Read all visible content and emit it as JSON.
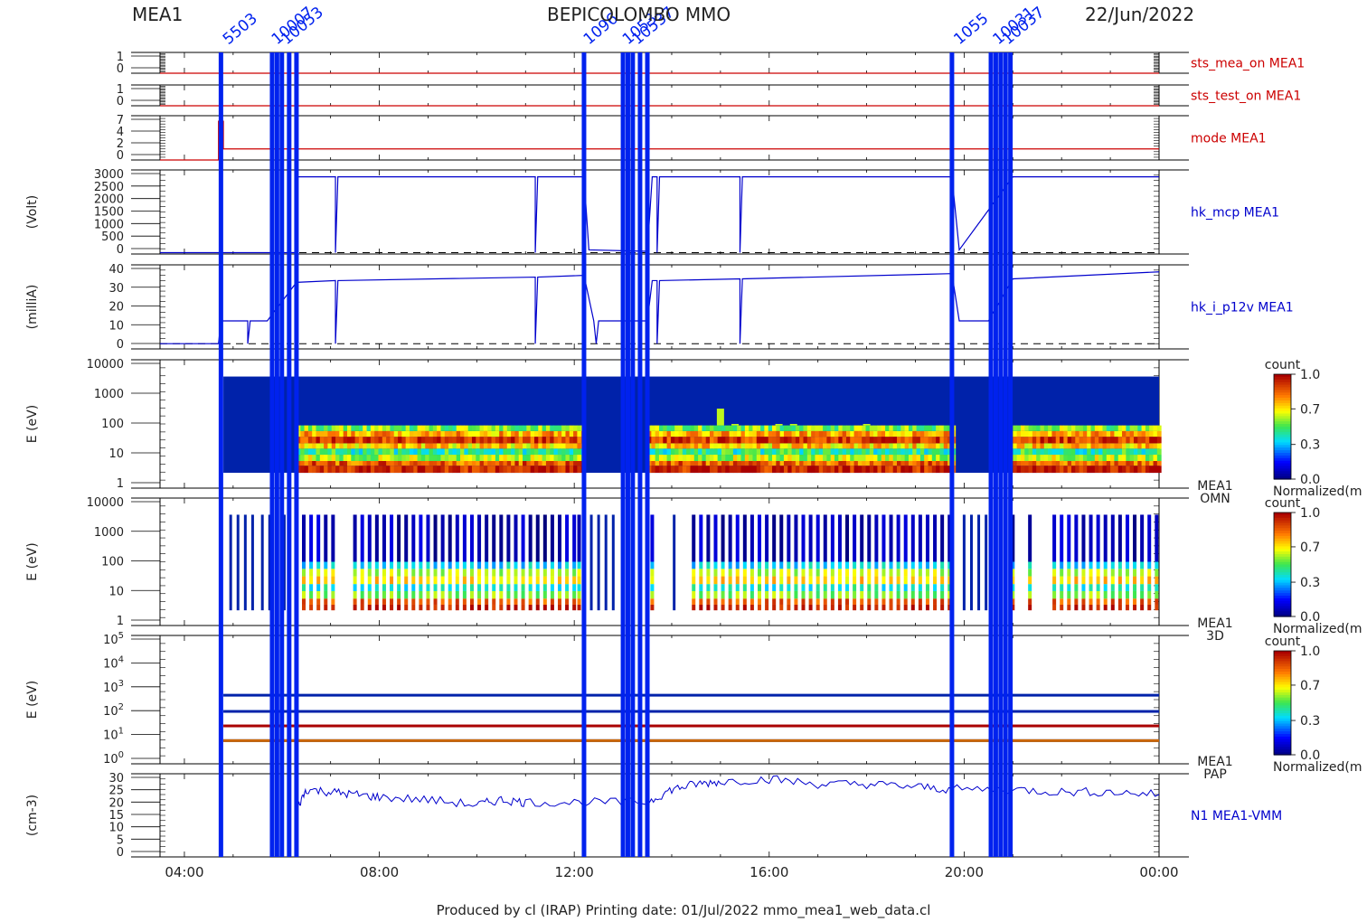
{
  "header": {
    "left": "MEA1",
    "center": "BEPICOLOMBO MMO",
    "right": "22/Jun/2022"
  },
  "footer": "Produced by cl (IRAP)    Printing date: 01/Jul/2022    mmo_mea1_web_data.cl",
  "colors": {
    "red_trace": "#cc0000",
    "blue_trace": "#0000cc",
    "event_bar": "#0022ee",
    "spectro_bg": "#0022aa"
  },
  "colorbar": {
    "title": "count",
    "ticks": [
      "1.0",
      "0.7",
      "0.3",
      "0.0"
    ],
    "ticks_b": [
      "1.0",
      "0.7",
      "0.3",
      "0.0"
    ],
    "label": "Normalized(m"
  },
  "chart_data": {
    "type": "line",
    "x_range_hours": [
      3.5,
      24.0
    ],
    "x_ticks": [
      "04:00",
      "08:00",
      "12:00",
      "16:00",
      "20:00",
      "00:00"
    ],
    "x_tick_hours": [
      4,
      8,
      12,
      16,
      20,
      24
    ],
    "event_lines_hours": [
      4.75,
      5.8,
      5.9,
      6.0,
      6.15,
      6.3,
      12.2,
      13.0,
      13.1,
      13.2,
      13.35,
      13.5,
      19.75,
      20.55,
      20.65,
      20.75,
      20.85,
      20.95
    ],
    "event_labels": [
      "5503",
      "10007",
      "10053",
      "1096",
      "1053",
      "10537",
      "1055",
      "10031",
      "10037"
    ],
    "panels": [
      {
        "id": "sts_mea_on",
        "label": "sts_mea_on MEA1",
        "trace": "red",
        "yticks": [
          "1",
          "0"
        ],
        "ylim": [
          0,
          1
        ],
        "series": [
          [
            3.5,
            0
          ],
          [
            24,
            0
          ]
        ]
      },
      {
        "id": "sts_test_on",
        "label": "sts_test_on MEA1",
        "trace": "red",
        "yticks": [
          "1",
          "0"
        ],
        "ylim": [
          0,
          1
        ],
        "series": [
          [
            3.5,
            0
          ],
          [
            24,
            0
          ]
        ]
      },
      {
        "id": "mode",
        "label": "mode MEA1",
        "trace": "red",
        "yticks": [
          "7",
          "4",
          "2",
          "0"
        ],
        "ylim": [
          0,
          8
        ],
        "series": [
          [
            3.5,
            0
          ],
          [
            4.7,
            0
          ],
          [
            4.7,
            7
          ],
          [
            4.8,
            7
          ],
          [
            4.8,
            2
          ],
          [
            24,
            2
          ]
        ]
      },
      {
        "id": "hk_mcp",
        "label": "hk_mcp MEA1",
        "ylabel": "(Volt)",
        "trace": "blue",
        "yticks": [
          "3000",
          "2500",
          "2000",
          "1500",
          "1000",
          "500",
          "0"
        ],
        "ylim": [
          -50,
          3000
        ],
        "series": [
          [
            3.5,
            0
          ],
          [
            6.3,
            0
          ],
          [
            6.3,
            2750
          ],
          [
            7.1,
            2750
          ],
          [
            7.1,
            0
          ],
          [
            7.15,
            2750
          ],
          [
            11.2,
            2750
          ],
          [
            11.2,
            0
          ],
          [
            11.25,
            2750
          ],
          [
            12.2,
            2750
          ],
          [
            12.3,
            100
          ],
          [
            13.5,
            50
          ],
          [
            13.6,
            2750
          ],
          [
            13.7,
            2750
          ],
          [
            13.7,
            0
          ],
          [
            13.75,
            2750
          ],
          [
            15.4,
            2750
          ],
          [
            15.4,
            0
          ],
          [
            15.45,
            2750
          ],
          [
            19.75,
            2750
          ],
          [
            19.9,
            100
          ],
          [
            21.0,
            2750
          ],
          [
            24,
            2750
          ]
        ]
      },
      {
        "id": "hk_i_p12v",
        "label": "hk_i_p12v MEA1",
        "ylabel": "(milliA)",
        "trace": "blue",
        "yticks": [
          "40",
          "30",
          "20",
          "10",
          "0"
        ],
        "ylim": [
          -3,
          45
        ],
        "series": [
          [
            3.5,
            0
          ],
          [
            4.7,
            0
          ],
          [
            4.75,
            13
          ],
          [
            5.3,
            13
          ],
          [
            5.3,
            0
          ],
          [
            5.35,
            13
          ],
          [
            5.7,
            13
          ],
          [
            6.3,
            35
          ],
          [
            7.1,
            36
          ],
          [
            7.1,
            0
          ],
          [
            7.15,
            36
          ],
          [
            11.2,
            38
          ],
          [
            11.2,
            0
          ],
          [
            11.25,
            38
          ],
          [
            12.2,
            39
          ],
          [
            12.4,
            13
          ],
          [
            12.45,
            0
          ],
          [
            12.5,
            13
          ],
          [
            13.5,
            13
          ],
          [
            13.6,
            36
          ],
          [
            13.7,
            36
          ],
          [
            13.7,
            0
          ],
          [
            13.75,
            36
          ],
          [
            15.4,
            37
          ],
          [
            15.4,
            0
          ],
          [
            15.45,
            37
          ],
          [
            19.75,
            40
          ],
          [
            19.9,
            13
          ],
          [
            20.5,
            13
          ],
          [
            21.0,
            37
          ],
          [
            24,
            41
          ]
        ]
      },
      {
        "id": "omni",
        "label": "MEA1",
        "sublabel": "OMN",
        "ylabel": "E (eV)",
        "spectro": true,
        "yticks": [
          "10000",
          "1000",
          "100",
          "10",
          "1"
        ],
        "ylim": [
          1,
          10000
        ],
        "spec_span_hours": [
          4.8,
          24
        ],
        "blocks": [
          [
            6.3,
            12.2
          ],
          [
            13.5,
            19.75
          ],
          [
            21.0,
            24
          ]
        ],
        "peaks": [
          [
            15.0,
            300
          ],
          [
            15.3,
            100
          ],
          [
            16.2,
            100
          ],
          [
            16.5,
            100
          ],
          [
            18.0,
            100
          ]
        ]
      },
      {
        "id": "3d",
        "label": "MEA1",
        "sublabel": "3D",
        "ylabel": "E (eV)",
        "spectro": true,
        "yticks": [
          "10000",
          "1000",
          "100",
          "10",
          "1"
        ],
        "ylim": [
          1,
          10000
        ],
        "stripe_hours": [
          4.95,
          5.1,
          5.25,
          5.4,
          5.6,
          5.75,
          6.05,
          6.45,
          6.6,
          6.75,
          6.9,
          7.05,
          7.5,
          7.65,
          7.8,
          7.95,
          8.1,
          8.25,
          8.4,
          8.55,
          8.7,
          8.85,
          9.0,
          9.15,
          9.3,
          9.45,
          9.6,
          9.75,
          9.9,
          10.05,
          10.2,
          10.35,
          10.5,
          10.65,
          10.8,
          10.95,
          11.1,
          11.25,
          11.4,
          11.55,
          11.7,
          11.85,
          12.0,
          12.1,
          12.35,
          12.5,
          12.65,
          12.8,
          13.6,
          14.05,
          14.45,
          14.6,
          14.75,
          14.9,
          15.05,
          15.2,
          15.35,
          15.5,
          15.65,
          15.8,
          15.95,
          16.1,
          16.25,
          16.4,
          16.55,
          16.7,
          16.85,
          17.0,
          17.15,
          17.3,
          17.45,
          17.6,
          17.75,
          17.9,
          18.05,
          18.2,
          18.35,
          18.5,
          18.65,
          18.8,
          18.95,
          19.1,
          19.25,
          19.4,
          19.55,
          19.7,
          20.0,
          20.15,
          20.3,
          20.45,
          21.0,
          21.35,
          21.85,
          22.0,
          22.15,
          22.3,
          22.45,
          22.6,
          22.75,
          22.9,
          23.05,
          23.2,
          23.35,
          23.5,
          23.65,
          23.8,
          23.95
        ],
        "colored_ranges": [
          [
            6.45,
            7.15
          ],
          [
            7.5,
            12.2
          ],
          [
            13.6,
            13.65
          ],
          [
            14.45,
            19.75
          ],
          [
            21.0,
            21.4
          ],
          [
            21.85,
            24
          ]
        ]
      },
      {
        "id": "pap",
        "label": "MEA1",
        "sublabel": "PAP",
        "ylabel": "E (eV)",
        "spectro": true,
        "yticks": [
          "10^5",
          "10^4",
          "10^3",
          "10^2",
          "10^1",
          "10^0"
        ],
        "ylim": [
          1,
          100000
        ],
        "levels_eV": [
          470,
          110,
          30,
          8
        ],
        "span_hours": [
          4.8,
          24
        ]
      },
      {
        "id": "n1",
        "label": "N1  MEA1-VMM",
        "ylabel": "(cm-3)",
        "trace": "blue",
        "yticks": [
          "30",
          "25",
          "20",
          "15",
          "10",
          "5",
          "0"
        ],
        "ylim": [
          -1,
          31
        ],
        "series": [
          [
            6.3,
            17
          ],
          [
            6.5,
            25
          ],
          [
            7.0,
            24
          ],
          [
            7.5,
            23
          ],
          [
            8.0,
            22
          ],
          [
            9.0,
            21
          ],
          [
            10.0,
            19
          ],
          [
            10.5,
            21
          ],
          [
            11.0,
            20
          ],
          [
            12.2,
            20
          ],
          [
            13.5,
            20
          ],
          [
            14.0,
            25
          ],
          [
            14.5,
            27
          ],
          [
            15.0,
            28
          ],
          [
            16.0,
            29
          ],
          [
            17.0,
            27
          ],
          [
            18.0,
            27
          ],
          [
            19.0,
            26
          ],
          [
            19.75,
            25
          ],
          [
            21.0,
            25
          ],
          [
            22.0,
            24
          ],
          [
            23.0,
            24
          ],
          [
            24.0,
            23
          ]
        ]
      }
    ]
  }
}
